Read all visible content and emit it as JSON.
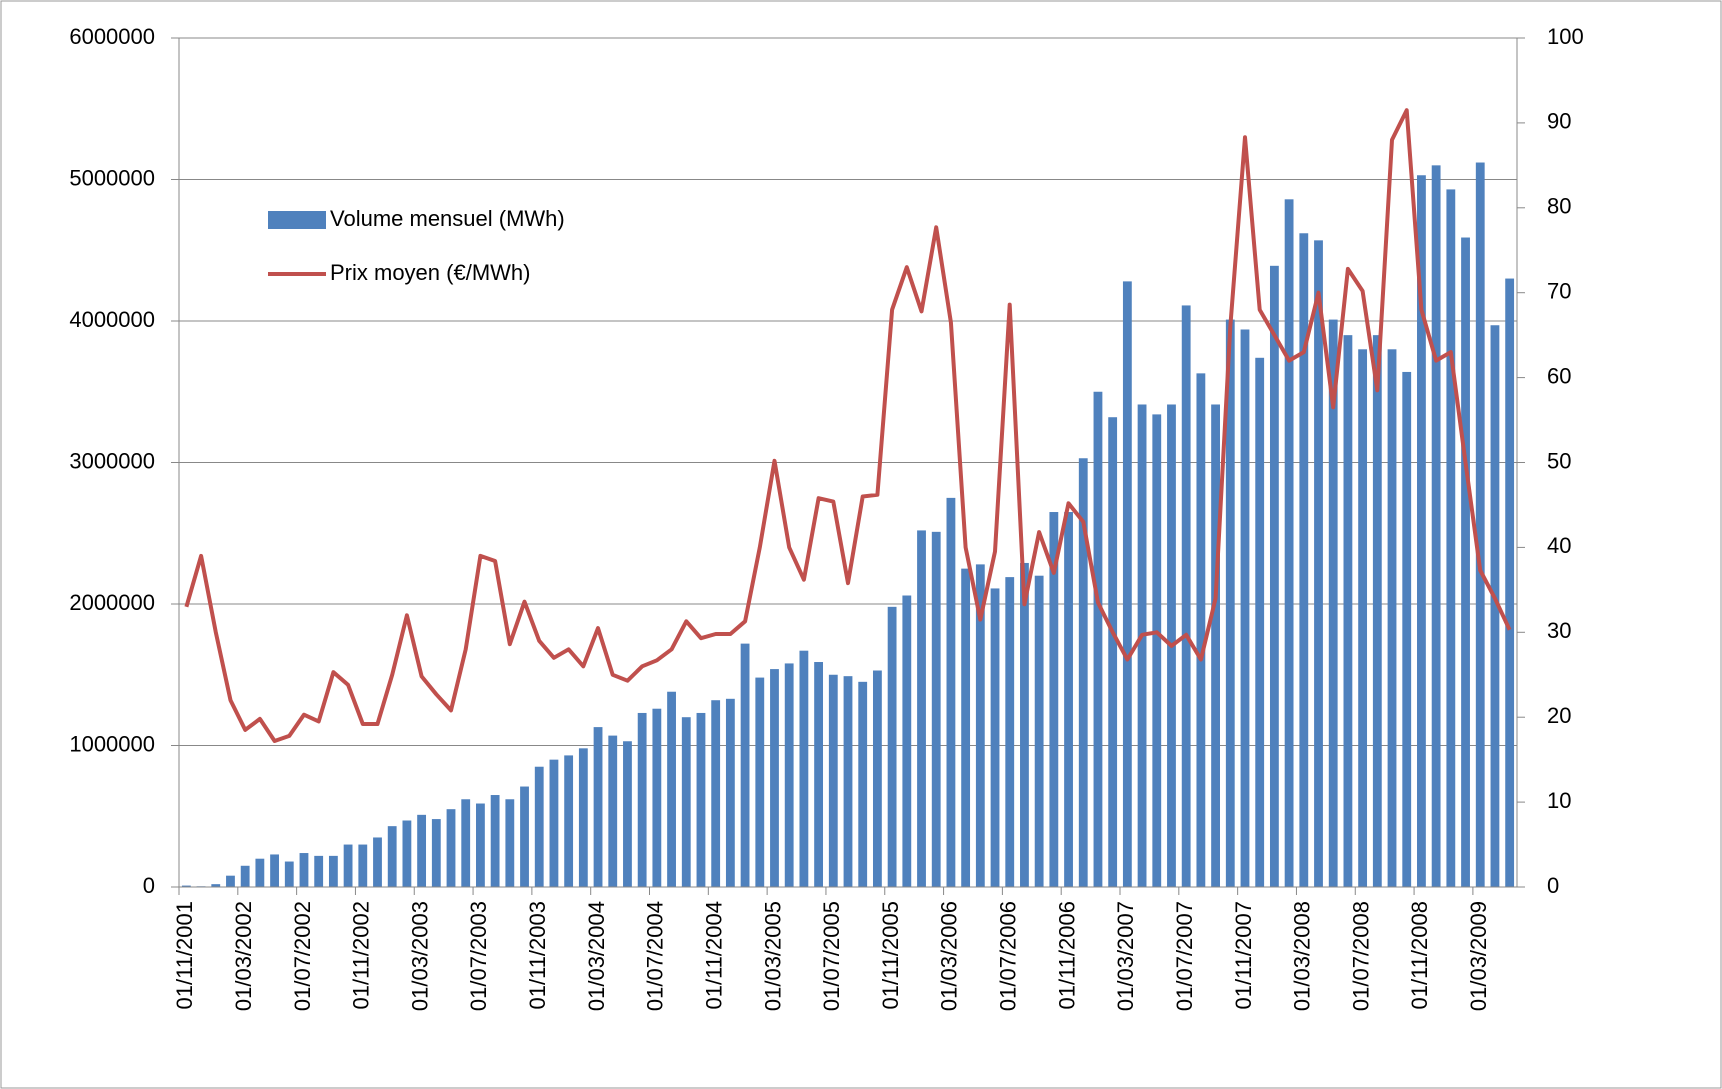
{
  "chart_data": {
    "type": "bar_line",
    "categories": [
      "01/11/2001",
      null,
      null,
      null,
      "01/03/2002",
      null,
      null,
      null,
      "01/07/2002",
      null,
      null,
      null,
      "01/11/2002",
      null,
      null,
      null,
      "01/03/2003",
      null,
      null,
      null,
      "01/07/2003",
      null,
      null,
      null,
      "01/11/2003",
      null,
      null,
      null,
      "01/03/2004",
      null,
      null,
      null,
      "01/07/2004",
      null,
      null,
      null,
      "01/11/2004",
      null,
      null,
      null,
      "01/03/2005",
      null,
      null,
      null,
      "01/07/2005",
      null,
      null,
      null,
      "01/11/2005",
      null,
      null,
      null,
      "01/03/2006",
      null,
      null,
      null,
      "01/07/2006",
      null,
      null,
      null,
      "01/11/2006",
      null,
      null,
      null,
      "01/03/2007",
      null,
      null,
      null,
      "01/07/2007",
      null,
      null,
      null,
      "01/11/2007",
      null,
      null,
      null,
      "01/03/2008",
      null,
      null,
      null,
      "01/07/2008",
      null,
      null,
      null,
      "01/11/2008",
      null,
      null,
      null,
      "01/03/2009",
      null,
      null
    ],
    "series": [
      {
        "name": "Volume mensuel (MWh)",
        "color": "#4f81bd",
        "type": "bar",
        "values": [
          10000,
          5000,
          20000,
          80000,
          150000,
          200000,
          230000,
          180000,
          240000,
          220000,
          220000,
          300000,
          300000,
          350000,
          430000,
          470000,
          510000,
          480000,
          550000,
          620000,
          590000,
          650000,
          620000,
          710000,
          850000,
          900000,
          930000,
          980000,
          1130000,
          1070000,
          1030000,
          1230000,
          1260000,
          1380000,
          1200000,
          1230000,
          1320000,
          1330000,
          1720000,
          1480000,
          1540000,
          1580000,
          1670000,
          1590000,
          1500000,
          1490000,
          1450000,
          1530000,
          1980000,
          2060000,
          2520000,
          2510000,
          2750000,
          2250000,
          2280000,
          2110000,
          2190000,
          2290000,
          2200000,
          2650000,
          2650000,
          3030000,
          3500000,
          3320000,
          4280000,
          3410000,
          3340000,
          3410000,
          4110000,
          3630000,
          3410000,
          4010000,
          3940000,
          3740000,
          4390000,
          4860000,
          4620000,
          4570000,
          4010000,
          3900000,
          3800000,
          3900000,
          3800000,
          3640000,
          5030000,
          5100000,
          4930000,
          4590000,
          5120000,
          3970000,
          4300000
        ]
      },
      {
        "name": "Prix moyen (€/MWh)",
        "color": "#c0504d",
        "type": "line",
        "axis": "y2",
        "values": [
          33,
          39,
          30,
          22,
          18.5,
          19.8,
          17.2,
          17.8,
          20.3,
          19.5,
          25.3,
          23.8,
          19.2,
          19.2,
          25,
          32,
          24.8,
          22.7,
          20.8,
          28,
          39,
          38.4,
          28.6,
          33.6,
          29,
          27,
          28,
          26,
          30.5,
          25,
          24.3,
          26,
          26.7,
          28,
          31.3,
          29.3,
          29.8,
          29.8,
          31.3,
          40,
          50.2,
          40,
          36.2,
          45.8,
          45.4,
          35.8,
          46,
          46.2,
          68,
          73,
          67.8,
          77.7,
          66.5,
          40,
          31.5,
          39.5,
          68.6,
          33.3,
          41.8,
          37,
          45.2,
          43,
          33.5,
          30,
          26.8,
          29.7,
          30,
          28.4,
          29.7,
          26.8,
          34,
          66,
          88.3,
          68,
          65,
          62,
          63,
          70,
          56.5,
          72.8,
          70.2,
          58.5,
          88,
          91.5,
          68,
          62,
          63,
          50,
          37.3,
          34,
          30.3
        ]
      }
    ],
    "ylim": [
      0,
      6000000
    ],
    "yticks": [
      0,
      1000000,
      2000000,
      3000000,
      4000000,
      5000000,
      6000000
    ],
    "y2lim": [
      0,
      100
    ],
    "y2ticks": [
      0,
      10,
      20,
      30,
      40,
      50,
      60,
      70,
      80,
      90,
      100
    ],
    "grid": true
  }
}
